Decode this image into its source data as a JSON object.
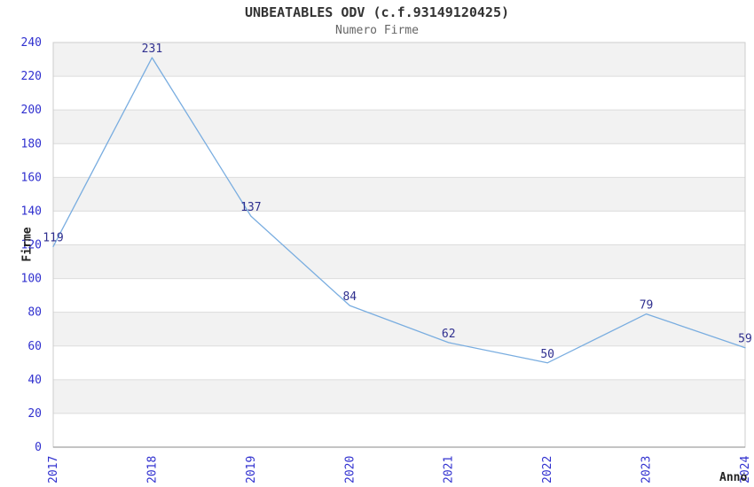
{
  "chart_data": {
    "type": "line",
    "title": "UNBEATABLES ODV (c.f.93149120425)",
    "subtitle": "Numero Firme",
    "xlabel": "Anno",
    "ylabel": "Firme",
    "categories": [
      "2017",
      "2018",
      "2019",
      "2020",
      "2021",
      "2022",
      "2023",
      "2024"
    ],
    "series": [
      {
        "name": "Numero Firme",
        "values": [
          119,
          231,
          137,
          84,
          62,
          50,
          79,
          59
        ]
      }
    ],
    "ylim": [
      0,
      240
    ],
    "ytick_step": 20,
    "yticks": [
      0,
      20,
      40,
      60,
      80,
      100,
      120,
      140,
      160,
      180,
      200,
      220,
      240
    ],
    "grid": "horizontal-bands-alternating",
    "legend": "none",
    "point_labels_visible": true,
    "colors": {
      "line": "#79ade0",
      "band_dark": "#f2f2f2",
      "band_light": "#ffffff",
      "gridline": "#dcdcdc",
      "plot_border": "#cccccc",
      "axis_line": "#8a8a8a",
      "tick_label": "#3030cf",
      "value_label": "#2f2f8f",
      "title": "#333333",
      "subtitle": "#666666"
    }
  }
}
